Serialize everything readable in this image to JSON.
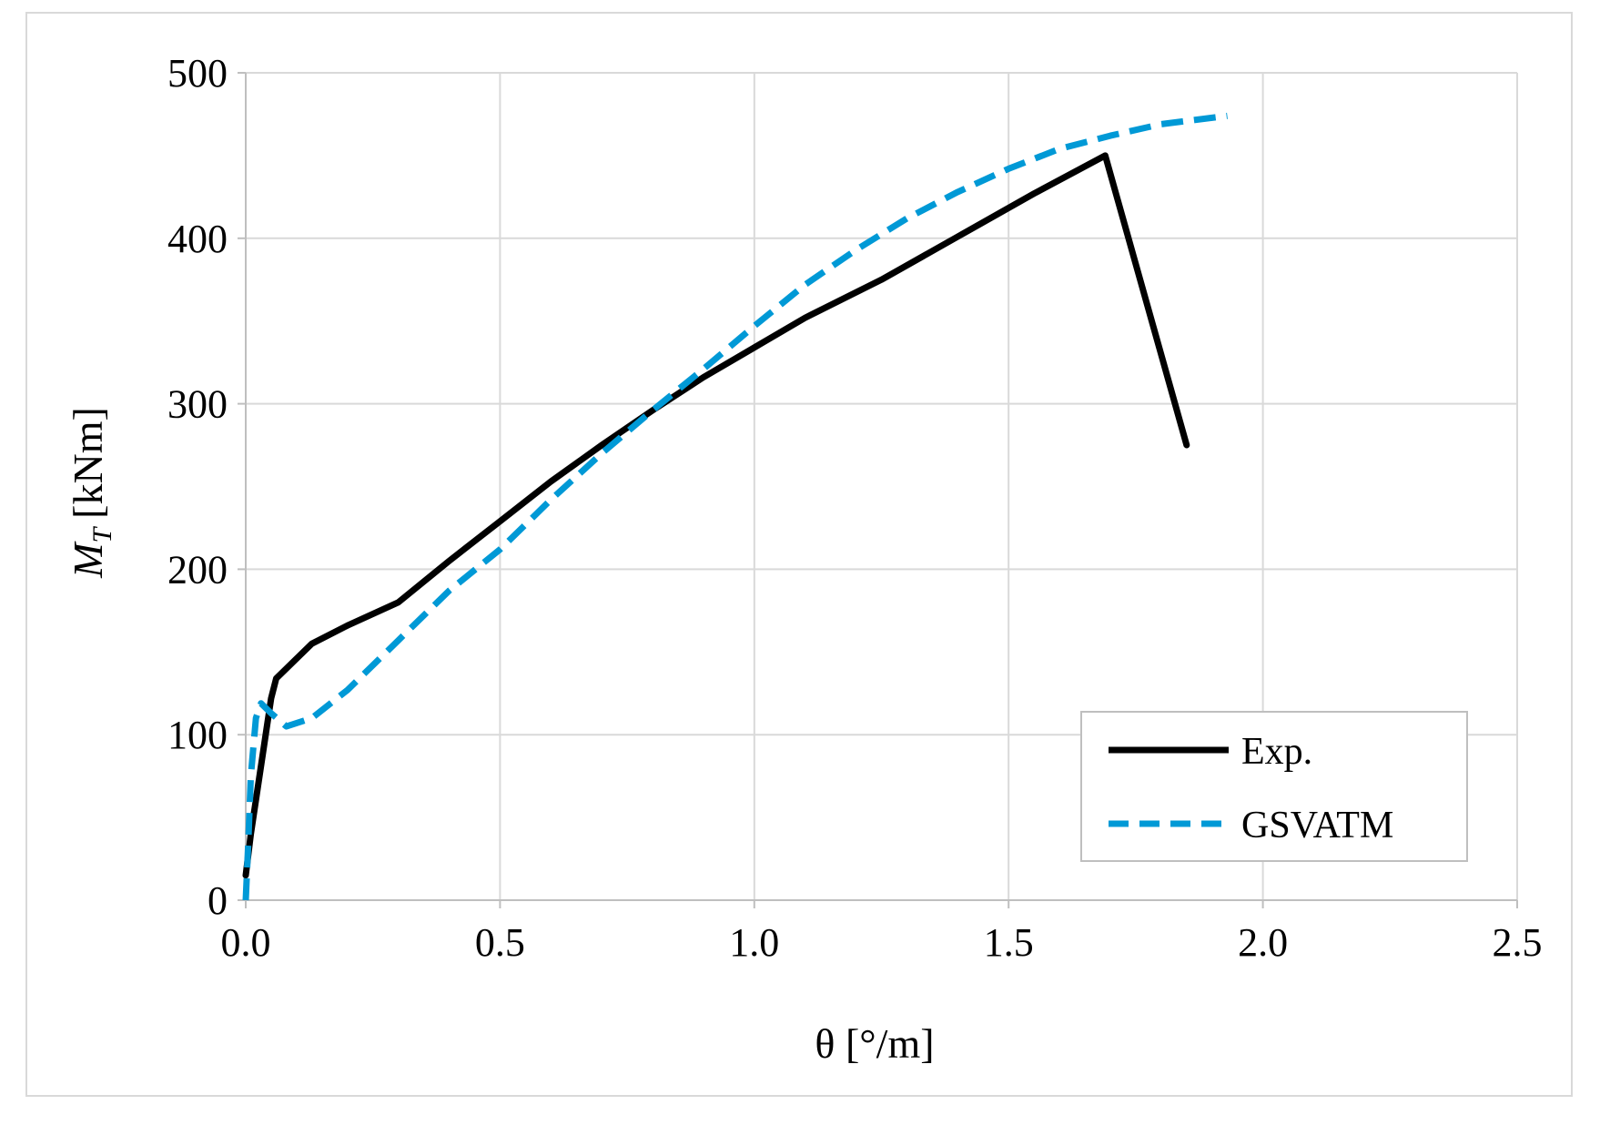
{
  "chart_data": {
    "type": "line",
    "title": "",
    "xlabel": "θ [°/m]",
    "ylabel_main": "M",
    "ylabel_sub": "T",
    "ylabel_units": "[kNm]",
    "xlim": [
      0,
      2.5
    ],
    "ylim": [
      0,
      500
    ],
    "x_ticks": [
      0,
      0.5,
      1.0,
      1.5,
      2.0,
      2.5
    ],
    "x_tick_labels": [
      "0.0",
      "0.5",
      "1.0",
      "1.5",
      "2.0",
      "2.5"
    ],
    "y_ticks": [
      0,
      100,
      200,
      300,
      400,
      500
    ],
    "y_tick_labels": [
      "0",
      "100",
      "200",
      "300",
      "400",
      "500"
    ],
    "grid": true,
    "legend_position": "bottom-right",
    "series": [
      {
        "name": "Exp.",
        "color": "#000000",
        "style": "solid",
        "x": [
          0,
          0.01,
          0.05,
          0.06,
          0.13,
          0.2,
          0.3,
          0.4,
          0.5,
          0.6,
          0.7,
          0.8,
          0.9,
          1.0,
          1.1,
          1.25,
          1.4,
          1.55,
          1.69,
          1.85
        ],
        "y": [
          15,
          40,
          122,
          134,
          155,
          166,
          180,
          205,
          229,
          253,
          275,
          296,
          316,
          334,
          352,
          375,
          401,
          427,
          450,
          275
        ]
      },
      {
        "name": "GSVATM",
        "color": "#0099d6",
        "style": "dashed",
        "x": [
          0,
          0.005,
          0.01,
          0.02,
          0.03,
          0.05,
          0.08,
          0.13,
          0.2,
          0.3,
          0.4,
          0.5,
          0.6,
          0.7,
          0.8,
          0.9,
          1.0,
          1.1,
          1.2,
          1.3,
          1.4,
          1.5,
          1.6,
          1.7,
          1.8,
          1.93
        ],
        "y": [
          0,
          35,
          75,
          110,
          119,
          113,
          105,
          110,
          127,
          157,
          187,
          212,
          242,
          270,
          296,
          321,
          347,
          372,
          393,
          412,
          428,
          442,
          454,
          462,
          469,
          474
        ]
      }
    ]
  }
}
